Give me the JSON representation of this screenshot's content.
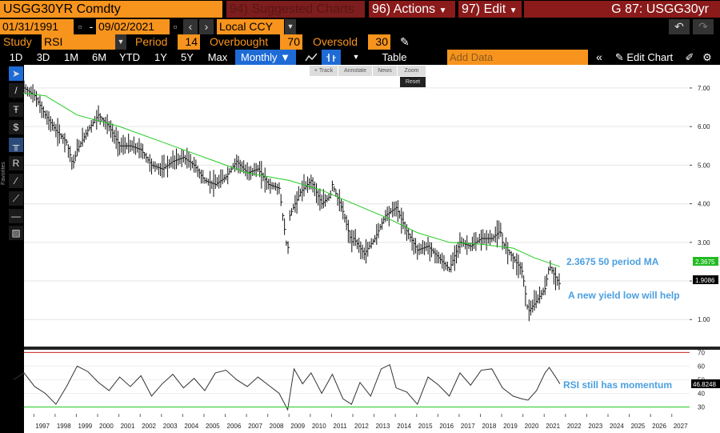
{
  "header": {
    "ticker": "USGG30YR Comdty",
    "suggested": "94) Suggested Charts",
    "actions": "96) Actions",
    "edit": "97) Edit",
    "gcode": "G 87: USGG30yr"
  },
  "daterange": {
    "start": "01/31/1991",
    "dash": "-",
    "end": "09/02/2021",
    "currency": "Local CCY"
  },
  "study": {
    "study_label": "Study",
    "study_value": "RSI",
    "period_label": "Period",
    "period_value": "14",
    "overbought_label": "Overbought",
    "overbought_value": "70",
    "oversold_label": "Oversold",
    "oversold_value": "30"
  },
  "toolbar": {
    "ranges": [
      "1D",
      "3D",
      "1M",
      "6M",
      "YTD",
      "1Y",
      "5Y",
      "Max"
    ],
    "frequency": "Monthly ▼",
    "table": "Table",
    "add_data_placeholder": "Add Data",
    "edit_chart": "Edit Chart"
  },
  "minitools": {
    "track": "+ Track",
    "annotate": "Annotate",
    "news": "News",
    "zoom": "Zoom",
    "reset": "Reset"
  },
  "sidebar": {
    "favorites": "Favorites"
  },
  "annotations": {
    "ma": "2.3675 50 period MA",
    "yield_low": "A new yield low will help",
    "rsi": "RSI still has momentum"
  },
  "price_tags": {
    "ma": "2.3675",
    "last": "1.9086",
    "rsi": "46.8248"
  },
  "colors": {
    "bloomberg_orange": "#f7941d",
    "bloomberg_red": "#8b1a1a",
    "ma_line": "#22cc22",
    "annotation_blue": "#4a9fe0",
    "overbought_line": "#cc2222",
    "oversold_line": "#22cc22"
  },
  "chart_data": {
    "type": "line",
    "x_labels": [
      "1997",
      "1998",
      "1999",
      "2000",
      "2001",
      "2002",
      "2003",
      "2004",
      "2005",
      "2006",
      "2007",
      "2008",
      "2009",
      "2010",
      "2011",
      "2012",
      "2013",
      "2014",
      "2015",
      "2016",
      "2017",
      "2018",
      "2019",
      "2020",
      "2021",
      "2022",
      "2023",
      "2024",
      "2025",
      "2026",
      "2027"
    ],
    "price_ticks": [
      "7.00",
      "6.00",
      "5.00",
      "4.00",
      "3.00",
      "2.00",
      "1.00"
    ],
    "rsi_ticks": [
      "70",
      "60",
      "50",
      "40",
      "30"
    ],
    "price_ylim": [
      0.3,
      7.6
    ],
    "rsi_ylim": [
      25,
      72
    ],
    "rsi_overbought": 70,
    "rsi_oversold": 30,
    "series": [
      {
        "role": "price",
        "x": [
          1996.0,
          1996.5,
          1997.0,
          1997.5,
          1998.0,
          1998.5,
          1998.8,
          1999.0,
          1999.5,
          2000.0,
          2000.5,
          2001.0,
          2001.5,
          2002.0,
          2002.5,
          2003.0,
          2003.5,
          2004.0,
          2004.5,
          2005.0,
          2005.5,
          2006.0,
          2006.5,
          2007.0,
          2007.5,
          2008.0,
          2008.5,
          2008.9,
          2009.0,
          2009.5,
          2010.0,
          2010.5,
          2010.9,
          2011.0,
          2011.5,
          2011.9,
          2012.0,
          2012.5,
          2013.0,
          2013.5,
          2014.0,
          2014.5,
          2015.0,
          2015.5,
          2016.0,
          2016.5,
          2017.0,
          2017.5,
          2018.0,
          2018.5,
          2018.9,
          2019.0,
          2019.5,
          2019.9,
          2020.0,
          2020.2,
          2020.5,
          2021.0,
          2021.2,
          2021.5,
          2021.7
        ],
        "y": [
          6.8,
          7.0,
          6.8,
          6.3,
          5.9,
          5.6,
          5.0,
          5.4,
          5.9,
          6.3,
          6.0,
          5.5,
          5.5,
          5.4,
          5.0,
          4.9,
          5.1,
          5.2,
          5.0,
          4.6,
          4.5,
          4.7,
          5.1,
          4.8,
          4.9,
          4.5,
          4.4,
          2.7,
          3.7,
          4.3,
          4.6,
          4.0,
          4.2,
          4.5,
          3.8,
          3.0,
          3.1,
          2.7,
          3.1,
          3.7,
          3.9,
          3.3,
          2.8,
          2.9,
          2.6,
          2.3,
          3.0,
          2.9,
          3.1,
          3.1,
          3.3,
          3.0,
          2.6,
          2.3,
          2.0,
          1.2,
          1.4,
          1.8,
          2.4,
          2.1,
          1.9
        ]
      },
      {
        "role": "ma50",
        "x": [
          1996.0,
          1997.5,
          1999.0,
          2001.0,
          2003.0,
          2005.0,
          2007.0,
          2009.0,
          2010.5,
          2012.0,
          2013.5,
          2015.0,
          2016.5,
          2018.0,
          2019.5,
          2020.5,
          2021.7
        ],
        "y": [
          6.9,
          6.8,
          6.3,
          6.0,
          5.6,
          5.2,
          4.8,
          4.6,
          4.35,
          4.0,
          3.65,
          3.25,
          3.0,
          2.95,
          2.85,
          2.6,
          2.37
        ]
      },
      {
        "role": "rsi",
        "x": [
          1996.0,
          1996.5,
          1997.0,
          1997.5,
          1998.0,
          1998.5,
          1999.0,
          1999.5,
          2000.0,
          2000.5,
          2001.0,
          2001.5,
          2002.0,
          2002.5,
          2003.0,
          2003.5,
          2004.0,
          2004.5,
          2005.0,
          2005.5,
          2006.0,
          2006.5,
          2007.0,
          2007.5,
          2008.0,
          2008.5,
          2008.9,
          2009.2,
          2009.6,
          2010.0,
          2010.5,
          2011.0,
          2011.5,
          2011.9,
          2012.3,
          2012.8,
          2013.3,
          2013.7,
          2014.0,
          2014.5,
          2015.0,
          2015.5,
          2016.0,
          2016.5,
          2017.0,
          2017.5,
          2018.0,
          2018.5,
          2019.0,
          2019.5,
          2019.9,
          2020.2,
          2020.6,
          2021.0,
          2021.2,
          2021.5,
          2021.7
        ],
        "y": [
          50,
          55,
          45,
          40,
          32,
          45,
          60,
          56,
          48,
          42,
          52,
          45,
          53,
          38,
          47,
          54,
          44,
          51,
          42,
          55,
          57,
          50,
          45,
          52,
          46,
          40,
          28,
          58,
          47,
          55,
          40,
          54,
          36,
          32,
          48,
          38,
          58,
          61,
          44,
          41,
          32,
          52,
          46,
          38,
          55,
          46,
          57,
          58,
          44,
          38,
          36,
          35,
          42,
          55,
          59,
          52,
          47
        ]
      }
    ]
  }
}
